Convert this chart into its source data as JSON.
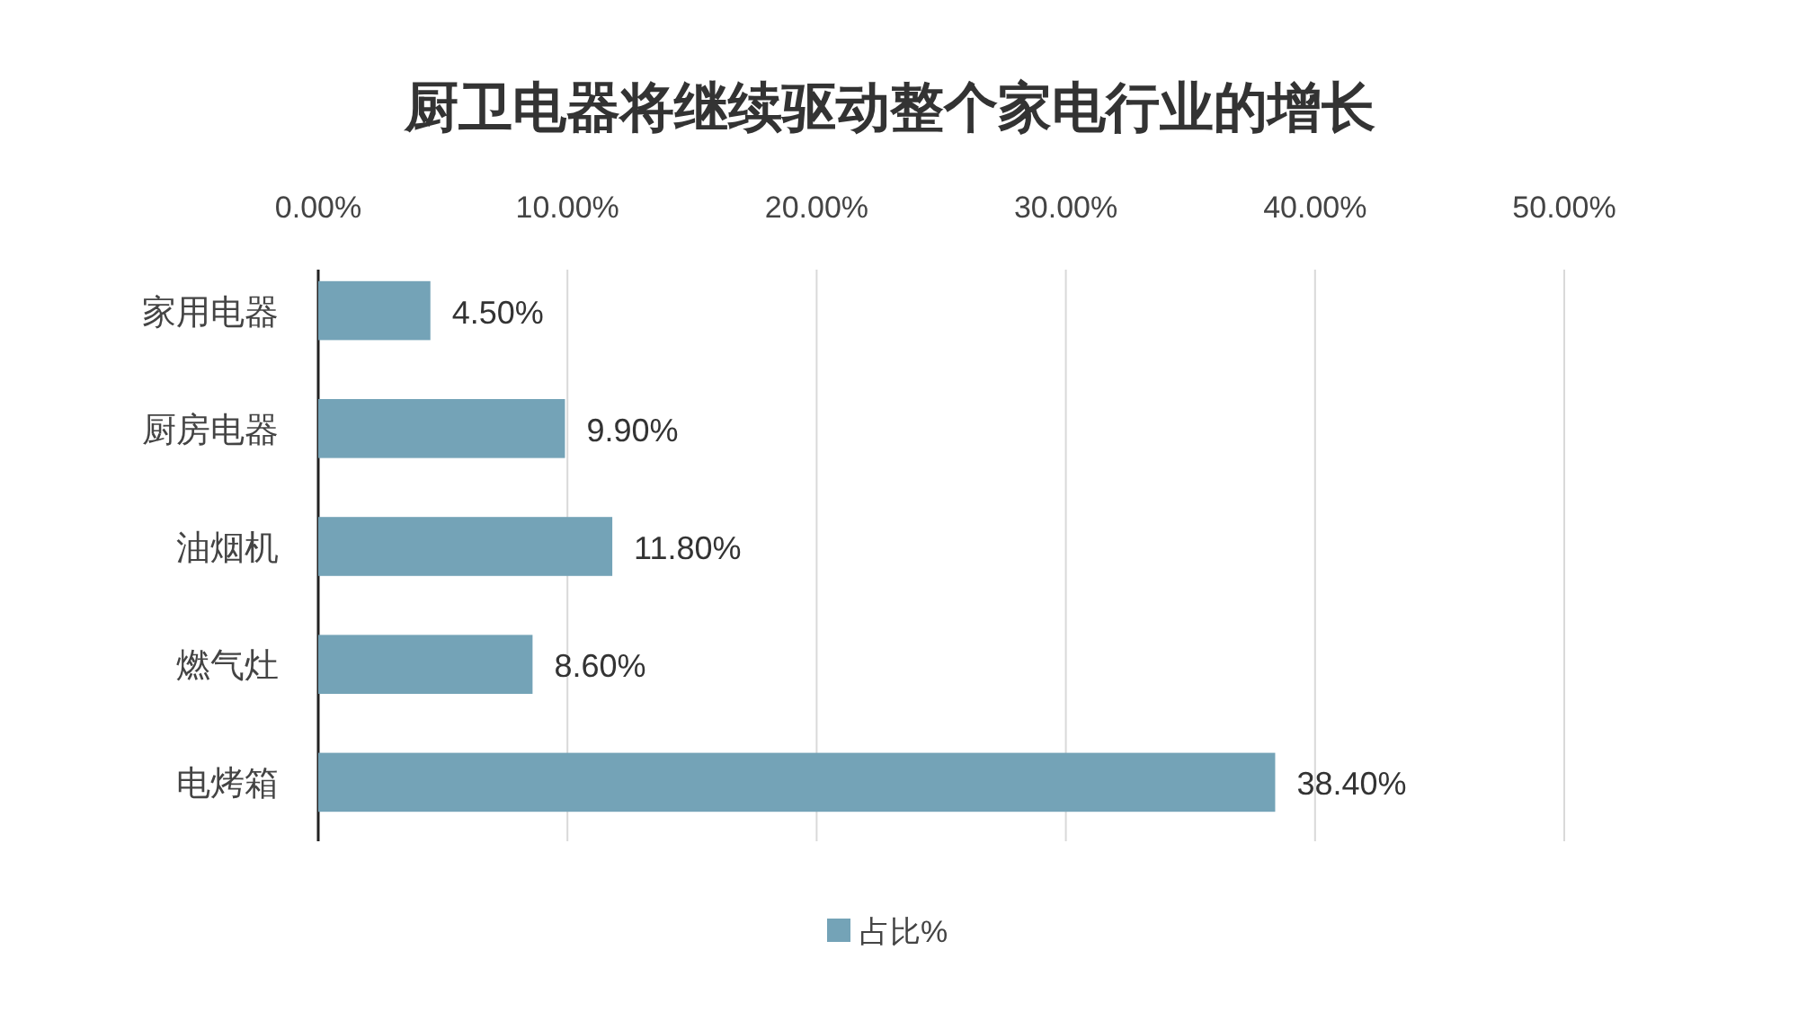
{
  "chart_data": {
    "type": "bar",
    "orientation": "horizontal",
    "title": "厨卫电器将继续驱动整个家电行业的增长",
    "categories": [
      "家用电器",
      "厨房电器",
      "油烟机",
      "燃气灶",
      "电烤箱"
    ],
    "series": [
      {
        "name": "占比%",
        "color": "#74a3b7",
        "values": [
          4.5,
          9.9,
          11.8,
          8.6,
          38.4
        ],
        "value_labels": [
          "4.50%",
          "9.90%",
          "11.80%",
          "8.60%",
          "38.40%"
        ]
      }
    ],
    "xlim": [
      0,
      50
    ],
    "xticks": [
      {
        "value": 0,
        "label": "0.00%"
      },
      {
        "value": 10,
        "label": "10.00%"
      },
      {
        "value": 20,
        "label": "20.00%"
      },
      {
        "value": 30,
        "label": "30.00%"
      },
      {
        "value": 40,
        "label": "40.00%"
      },
      {
        "value": 50,
        "label": "50.00%"
      }
    ],
    "grid": "x",
    "legend": "bottom"
  }
}
